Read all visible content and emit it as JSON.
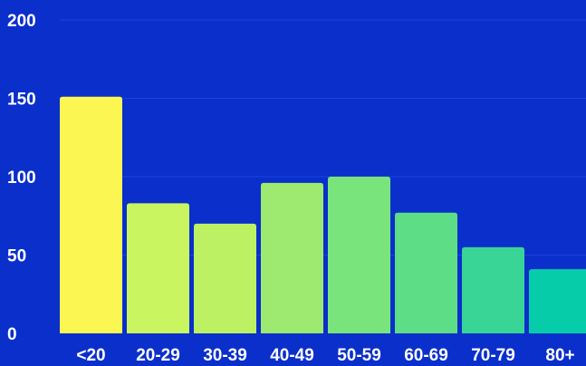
{
  "chart_data": {
    "type": "bar",
    "categories": [
      "<20",
      "20-29",
      "30-39",
      "40-49",
      "50-59",
      "60-69",
      "70-79",
      "80+"
    ],
    "values": [
      151,
      83,
      70,
      96,
      100,
      77,
      55,
      41
    ],
    "colors": [
      "#fcf653",
      "#c9f561",
      "#bcf163",
      "#9ee96f",
      "#7ae47c",
      "#5ddd85",
      "#39d597",
      "#06ccaa"
    ],
    "background": "#0a2fcb",
    "yticks": [
      0,
      50,
      100,
      150,
      200
    ],
    "ylim": [
      0,
      200
    ],
    "grid": true,
    "title": "",
    "xlabel": "",
    "ylabel": ""
  }
}
